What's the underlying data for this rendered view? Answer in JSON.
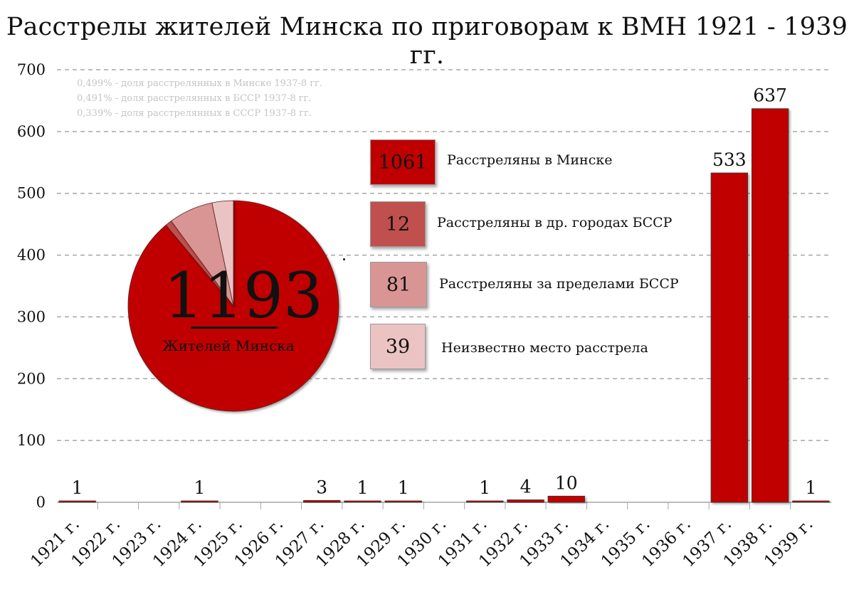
{
  "chart_data": {
    "type": "bar",
    "title": "Расстрелы жителей Минска по приговорам к ВМН 1921 - 1939 гг.",
    "xlabel": "",
    "ylabel": "",
    "ylim": [
      0,
      700
    ],
    "yticks": [
      0,
      100,
      200,
      300,
      400,
      500,
      600,
      700
    ],
    "grid": true,
    "categories": [
      "1921 г.",
      "1922 г.",
      "1923 г.",
      "1924 г.",
      "1925 г.",
      "1926 г.",
      "1927 г.",
      "1928 г.",
      "1929 г.",
      "1930 г.",
      "1931 г.",
      "1932 г.",
      "1933 г.",
      "1934 г.",
      "1935 г.",
      "1936 г.",
      "1937 г.",
      "1938 г.",
      "1939 г."
    ],
    "values": [
      1,
      null,
      null,
      1,
      null,
      null,
      3,
      1,
      1,
      null,
      1,
      4,
      10,
      null,
      null,
      null,
      533,
      637,
      1
    ],
    "bar_color": "#c00000"
  },
  "notes": [
    "0,499% - доля расстрелянных в Минске 1937-8 гг.",
    "0,491% - доля расстрелянных в БССР 1937-8 гг.",
    "0,339% - доля расстрелянных в СССР 1937-8 гг."
  ],
  "pie": {
    "total": "1193",
    "caption": "Жителей Минска",
    "slices": [
      {
        "label": "Расстреляны в Минске",
        "value": 1061,
        "color": "#c00000"
      },
      {
        "label": "Расстреляны в др. городах БССР",
        "value": 12,
        "color": "#c0504d"
      },
      {
        "label": "Расстреляны за пределами БССР",
        "value": 81,
        "color": "#d99594"
      },
      {
        "label": "Неизвестно место расстрела",
        "value": 39,
        "color": "#ebc3c3"
      }
    ]
  }
}
